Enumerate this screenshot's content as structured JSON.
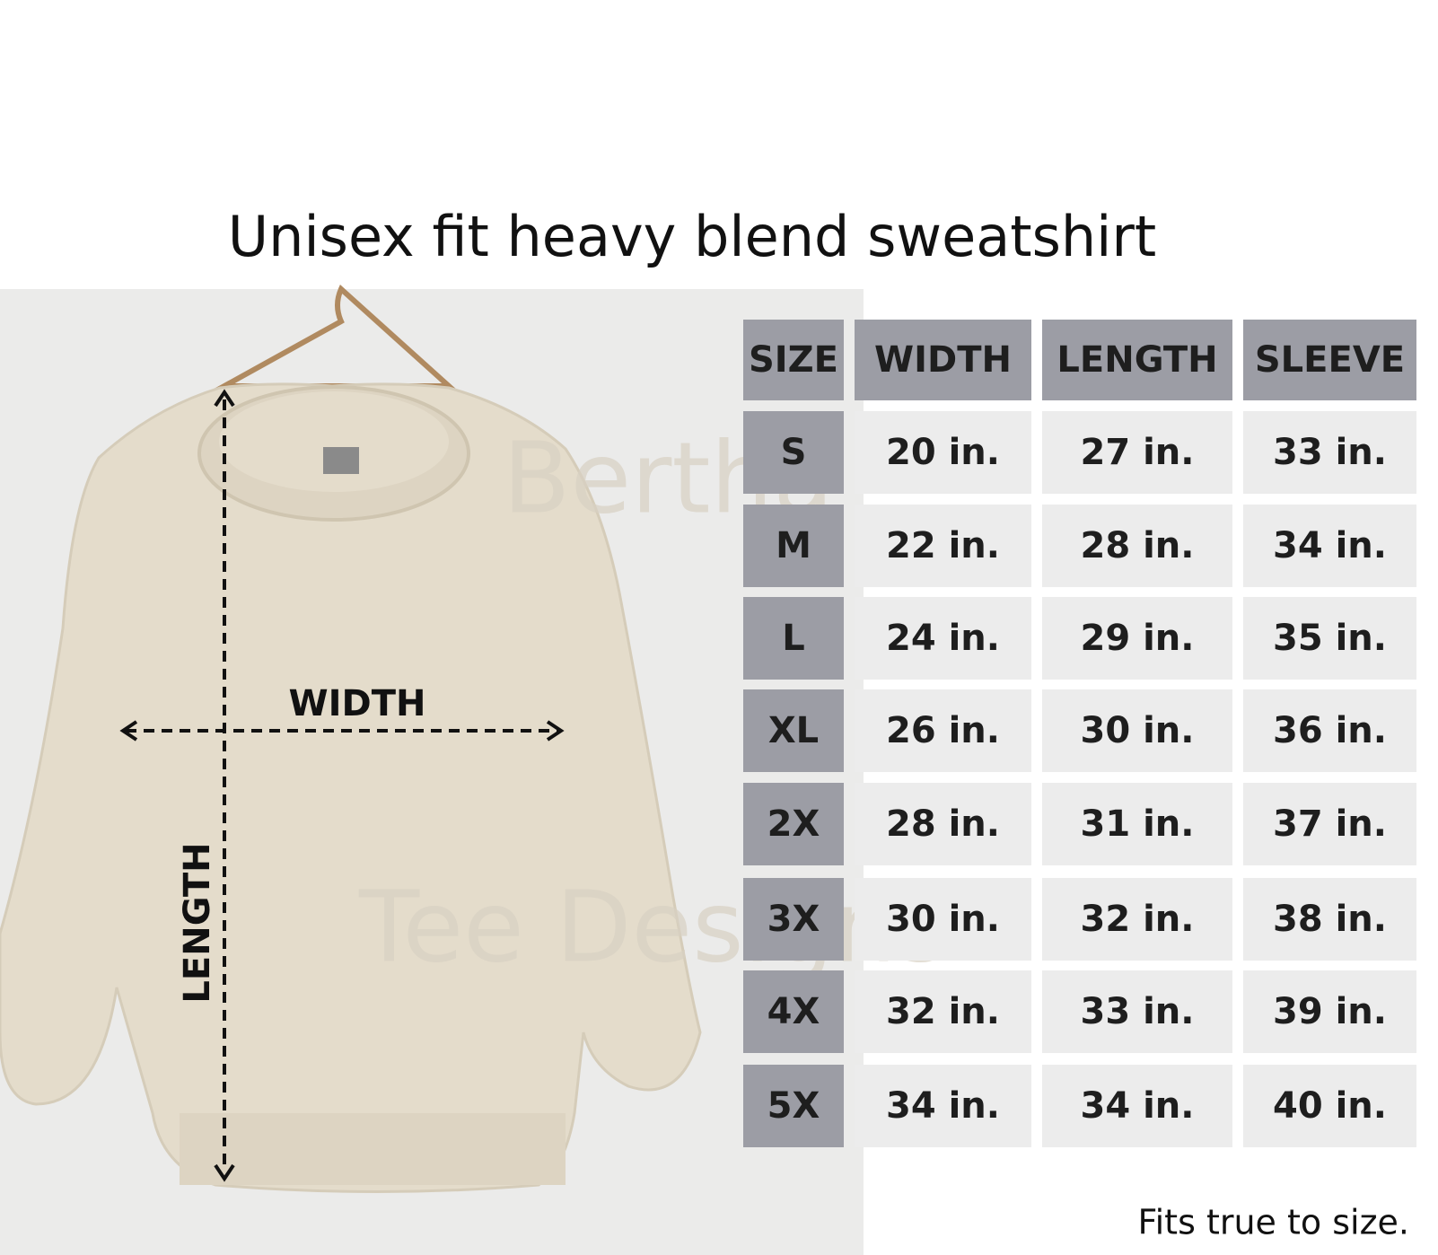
{
  "title": "Unisex fit heavy blend sweatshirt",
  "diagram": {
    "width_label": "WIDTH",
    "length_label": "LENGTH",
    "watermark": [
      "Bertha",
      "Tee Designs"
    ]
  },
  "table": {
    "header": [
      "SIZE",
      "WIDTH",
      "LENGTH",
      "SLEEVE"
    ],
    "rows": [
      [
        "S",
        "20 in.",
        "27 in.",
        "33 in."
      ],
      [
        "M",
        "22 in.",
        "28 in.",
        "34 in."
      ],
      [
        "L",
        "24 in.",
        "29 in.",
        "35 in."
      ],
      [
        "XL",
        "26 in.",
        "30 in.",
        "36 in."
      ],
      [
        "2X",
        "28 in.",
        "31 in.",
        "37 in."
      ],
      [
        "3X",
        "30 in.",
        "32 in.",
        "38 in."
      ],
      [
        "4X",
        "32 in.",
        "33 in.",
        "39 in."
      ],
      [
        "5X",
        "34 in.",
        "34 in.",
        "40 in."
      ]
    ]
  },
  "footnote": "Fits true to size."
}
